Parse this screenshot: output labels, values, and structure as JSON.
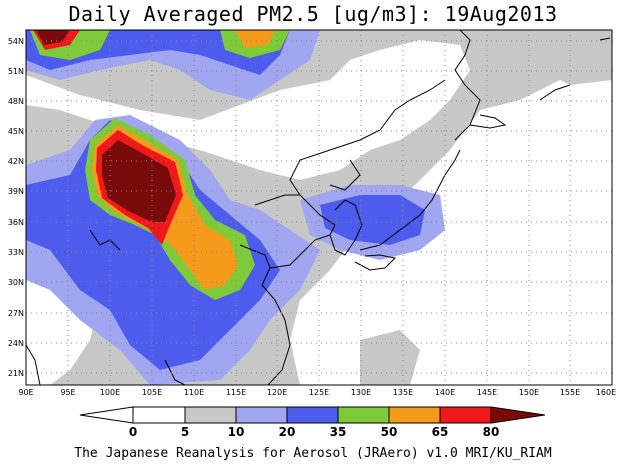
{
  "title": "Daily Averaged PM2.5 [ug/m3]: 19Aug2013",
  "footer": "The Japanese Reanalysis for Aerosol (JRAero) v1.0 MRI/KU_RIAM",
  "map": {
    "lon_range": [
      90,
      160
    ],
    "lat_range": [
      20,
      55
    ],
    "lon_labels": [
      "90E",
      "95E",
      "100E",
      "105E",
      "110E",
      "115E",
      "120E",
      "125E",
      "130E",
      "135E",
      "140E",
      "145E",
      "150E",
      "155E",
      "160E"
    ],
    "lat_labels": [
      "54N",
      "51N",
      "48N",
      "45N",
      "42N",
      "39N",
      "36N",
      "33N",
      "30N",
      "27N",
      "24N",
      "21N"
    ]
  },
  "colorbar": {
    "ticks": [
      "0",
      "5",
      "10",
      "20",
      "35",
      "50",
      "65",
      "80"
    ],
    "colors": [
      "#ffffff",
      "#c8c8c8",
      "#a0a6f0",
      "#4c5cec",
      "#7ecb3a",
      "#f59a1a",
      "#f01818",
      "#780a0a"
    ]
  }
}
